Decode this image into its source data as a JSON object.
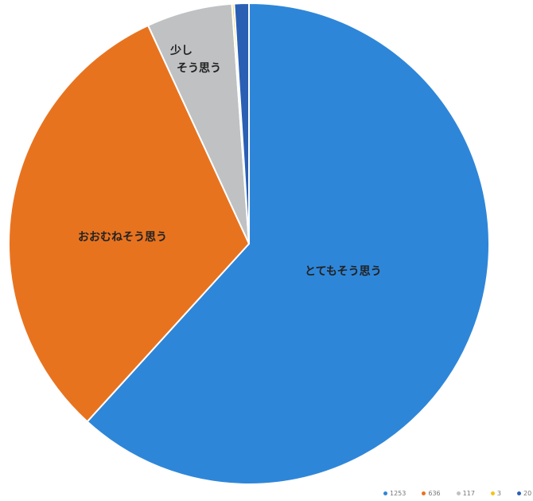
{
  "chart_data": {
    "type": "pie",
    "title": "",
    "categories": [
      "とてもそう思う",
      "おおむねそう思う",
      "少しそう思う",
      "",
      ""
    ],
    "values": [
      1253,
      636,
      117,
      3,
      20
    ],
    "legend_labels": [
      "1253",
      "636",
      "117",
      "3",
      "20"
    ],
    "colors": [
      "#2e86d9",
      "#e8731f",
      "#bfc1c3",
      "#f2c517",
      "#2a5fb4"
    ],
    "legend_position": "bottom-right"
  },
  "labels": {
    "slice_1": "とてもそう思う",
    "slice_2": "おおむねそう思う",
    "slice_3_line1": "少し",
    "slice_3_line2": "そう思う"
  }
}
